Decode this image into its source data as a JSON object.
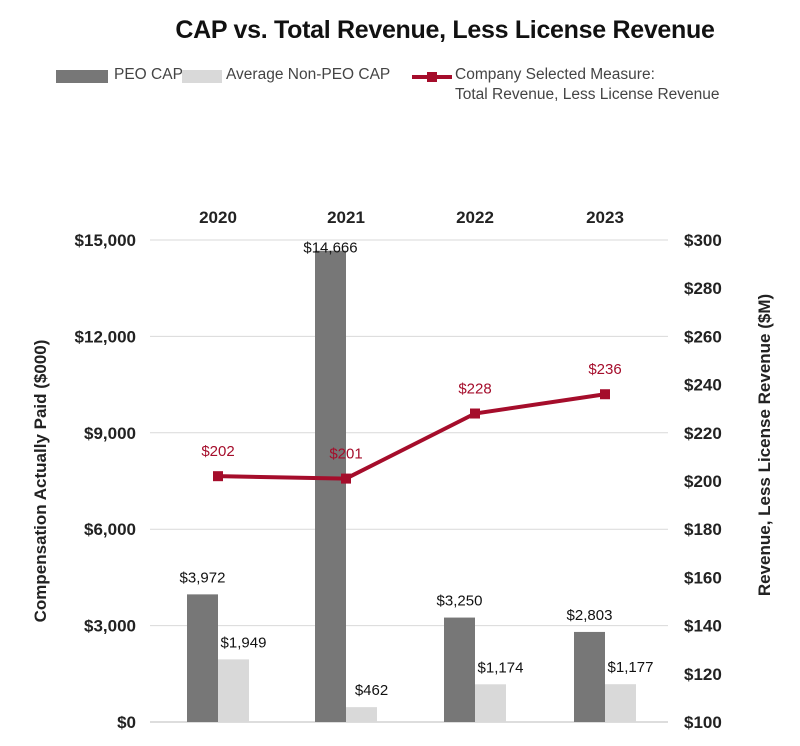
{
  "chart_data": {
    "type": "bar+line",
    "title": "CAP vs. Total Revenue, Less License Revenue",
    "categories": [
      "2020",
      "2021",
      "2022",
      "2023"
    ],
    "series": [
      {
        "name": "PEO CAP",
        "type": "bar",
        "axis": "left",
        "color": "#777777",
        "values": [
          3972,
          14666,
          3250,
          2803
        ],
        "labels": [
          "$3,972",
          "$14,666",
          "$3,250",
          "$2,803"
        ]
      },
      {
        "name": "Average Non-PEO CAP",
        "type": "bar",
        "axis": "left",
        "color": "#d9d9d9",
        "values": [
          1949,
          462,
          1174,
          1177
        ],
        "labels": [
          "$1,949",
          "$462",
          "$1,174",
          "$1,177"
        ]
      },
      {
        "name": "Company Selected Measure: Total Revenue, Less License Revenue",
        "name_line1": "Company Selected Measure:",
        "name_line2": "Total Revenue, Less License Revenue",
        "type": "line",
        "axis": "right",
        "color": "#a50d2b",
        "values": [
          202,
          201,
          228,
          236
        ],
        "labels": [
          "$202",
          "$201",
          "$228",
          "$236"
        ]
      }
    ],
    "ylabel_left": "Compensation Actually Paid ($000)",
    "ylabel_right": "Revenue, Less License Revenue ($M)",
    "ylim_left": [
      0,
      15000
    ],
    "ylim_right": [
      100,
      300
    ],
    "yticks_left": [
      "$0",
      "$3,000",
      "$6,000",
      "$9,000",
      "$12,000",
      "$15,000"
    ],
    "yticks_right": [
      "$100",
      "$120",
      "$140",
      "$160",
      "$180",
      "$200",
      "$220",
      "$240",
      "$260",
      "$280",
      "$300"
    ],
    "grid": true,
    "legend_position": "top",
    "xaxis_position": "top"
  }
}
